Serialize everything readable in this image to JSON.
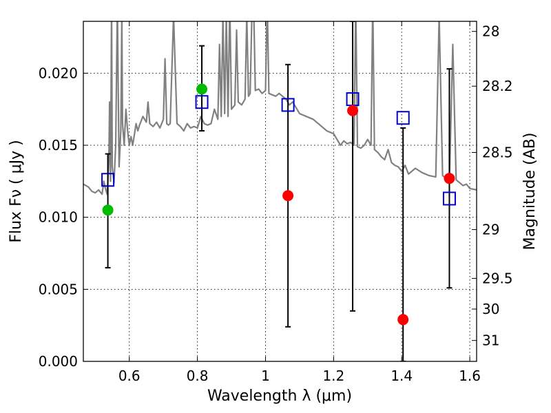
{
  "chart_data": {
    "type": "scatter",
    "xlabel": "Wavelength  λ (μm)",
    "ylabel": "Flux  Fν  ( μJy )",
    "y2label": "Magnitude (AB)",
    "xlim": [
      0.465,
      1.62
    ],
    "ylim": [
      0.0,
      0.0236
    ],
    "x_ticks": [
      {
        "value": 0.6,
        "label": "0.6"
      },
      {
        "value": 0.8,
        "label": "0.8"
      },
      {
        "value": 1.0,
        "label": "1"
      },
      {
        "value": 1.2,
        "label": "1.2"
      },
      {
        "value": 1.4,
        "label": "1.4"
      },
      {
        "value": 1.6,
        "label": "1.6"
      }
    ],
    "y_ticks": [
      {
        "value": 0.0,
        "label": "0.000"
      },
      {
        "value": 0.005,
        "label": "0.005"
      },
      {
        "value": 0.01,
        "label": "0.010"
      },
      {
        "value": 0.015,
        "label": "0.015"
      },
      {
        "value": 0.02,
        "label": "0.020"
      }
    ],
    "magnitude_ticks": [
      {
        "flux": 0.0229,
        "label": "28"
      },
      {
        "flux": 0.0191,
        "label": "28.2"
      },
      {
        "flux": 0.0145,
        "label": "28.5"
      },
      {
        "flux": 0.00915,
        "label": "29"
      },
      {
        "flux": 0.00576,
        "label": "29.5"
      },
      {
        "flux": 0.00363,
        "label": "30"
      },
      {
        "flux": 0.00145,
        "label": "31"
      }
    ],
    "grid": true,
    "colors": {
      "spectrum": "#808080",
      "detection_marker": "#00bb00",
      "upper_limit_marker": "#ff0000",
      "model_marker": "#0000cc",
      "errorbar": "#000000"
    },
    "series": [
      {
        "name": "observed_detections",
        "marker": "circle",
        "color": "#00bb00",
        "x": [
          0.537,
          0.813
        ],
        "y": [
          0.0105,
          0.0189
        ],
        "yerr_low": [
          0.0065,
          0.016
        ],
        "yerr_high": [
          0.0144,
          0.0219
        ]
      },
      {
        "name": "observed_nondetections",
        "marker": "circle",
        "color": "#ff0000",
        "x": [
          1.066,
          1.256,
          1.404,
          1.54
        ],
        "y": [
          0.0115,
          0.0174,
          0.0029,
          0.0127
        ],
        "yerr_low": [
          0.0024,
          0.0035,
          0.0,
          0.0051
        ],
        "yerr_high": [
          0.0206,
          0.0236,
          0.0162,
          0.0203
        ]
      },
      {
        "name": "model_photometry",
        "marker": "square_open",
        "color": "#0000cc",
        "x": [
          0.537,
          0.813,
          1.066,
          1.256,
          1.404,
          1.54
        ],
        "y": [
          0.0126,
          0.018,
          0.0178,
          0.0182,
          0.0169,
          0.0113
        ]
      },
      {
        "name": "sed_spectrum",
        "type": "line",
        "color": "#808080",
        "x": [
          0.465,
          0.48,
          0.49,
          0.5,
          0.51,
          0.52,
          0.525,
          0.53,
          0.535,
          0.54,
          0.542,
          0.545,
          0.548,
          0.55,
          0.555,
          0.56,
          0.565,
          0.567,
          0.57,
          0.575,
          0.578,
          0.58,
          0.585,
          0.59,
          0.595,
          0.6,
          0.605,
          0.61,
          0.62,
          0.625,
          0.63,
          0.64,
          0.65,
          0.655,
          0.66,
          0.67,
          0.68,
          0.69,
          0.7,
          0.705,
          0.71,
          0.715,
          0.72,
          0.73,
          0.74,
          0.75,
          0.76,
          0.77,
          0.78,
          0.79,
          0.8,
          0.81,
          0.82,
          0.83,
          0.84,
          0.85,
          0.86,
          0.865,
          0.87,
          0.875,
          0.88,
          0.885,
          0.89,
          0.895,
          0.9,
          0.91,
          0.915,
          0.92,
          0.93,
          0.94,
          0.945,
          0.95,
          0.955,
          0.96,
          0.965,
          0.97,
          0.98,
          0.99,
          1.0,
          1.005,
          1.01,
          1.02,
          1.03,
          1.04,
          1.05,
          1.06,
          1.07,
          1.08,
          1.09,
          1.1,
          1.12,
          1.14,
          1.16,
          1.18,
          1.2,
          1.21,
          1.22,
          1.23,
          1.24,
          1.25,
          1.26,
          1.265,
          1.27,
          1.28,
          1.29,
          1.3,
          1.31,
          1.315,
          1.32,
          1.33,
          1.34,
          1.35,
          1.36,
          1.37,
          1.38,
          1.39,
          1.4,
          1.41,
          1.42,
          1.44,
          1.46,
          1.48,
          1.5,
          1.51,
          1.52,
          1.53,
          1.54,
          1.55,
          1.56,
          1.57,
          1.58,
          1.59,
          1.6,
          1.62
        ],
        "y": [
          0.0123,
          0.0121,
          0.0118,
          0.0117,
          0.0119,
          0.0116,
          0.0125,
          0.012,
          0.0116,
          0.014,
          0.018,
          0.0125,
          0.025,
          0.0135,
          0.0124,
          0.015,
          0.025,
          0.02,
          0.0135,
          0.016,
          0.024,
          0.0165,
          0.015,
          0.0175,
          0.016,
          0.015,
          0.0156,
          0.015,
          0.0165,
          0.016,
          0.0164,
          0.017,
          0.0166,
          0.018,
          0.0165,
          0.0163,
          0.0166,
          0.0162,
          0.0168,
          0.021,
          0.0165,
          0.0164,
          0.0165,
          0.024,
          0.0165,
          0.0163,
          0.016,
          0.0165,
          0.0162,
          0.0163,
          0.0162,
          0.017,
          0.0165,
          0.0164,
          0.0165,
          0.0175,
          0.0168,
          0.022,
          0.017,
          0.024,
          0.0172,
          0.024,
          0.017,
          0.025,
          0.0175,
          0.0178,
          0.023,
          0.018,
          0.0178,
          0.0182,
          0.024,
          0.0184,
          0.0186,
          0.024,
          0.025,
          0.0188,
          0.0189,
          0.0186,
          0.0188,
          0.025,
          0.0186,
          0.0185,
          0.0184,
          0.0186,
          0.0184,
          0.0182,
          0.0178,
          0.018,
          0.0176,
          0.0172,
          0.017,
          0.0168,
          0.0164,
          0.016,
          0.0158,
          0.0154,
          0.015,
          0.0153,
          0.0151,
          0.0152,
          0.015,
          0.025,
          0.0149,
          0.0148,
          0.015,
          0.0154,
          0.015,
          0.025,
          0.0147,
          0.0145,
          0.0142,
          0.014,
          0.0147,
          0.0138,
          0.0136,
          0.0135,
          0.0132,
          0.0136,
          0.013,
          0.0134,
          0.0131,
          0.0129,
          0.0128,
          0.024,
          0.0129,
          0.0127,
          0.0125,
          0.022,
          0.0126,
          0.0124,
          0.0122,
          0.0123,
          0.012,
          0.0119
        ]
      }
    ]
  }
}
